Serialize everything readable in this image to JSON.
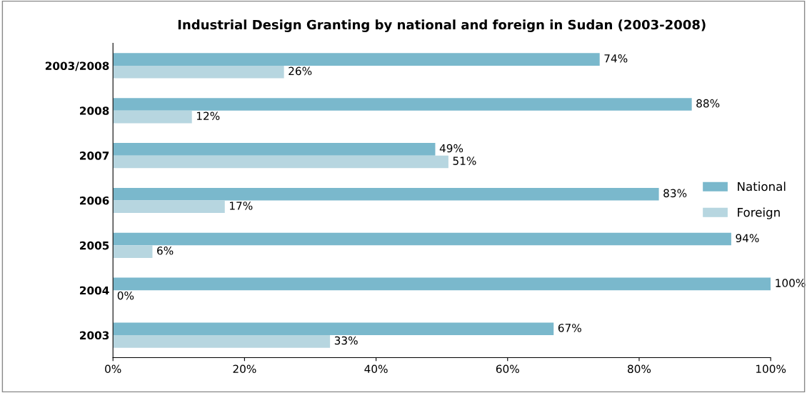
{
  "chart_data": {
    "type": "bar",
    "orientation": "horizontal",
    "title": "Industrial Design Granting by national and foreign in Sudan (2003-2008)",
    "categories": [
      "2003/2008",
      "2008",
      "2007",
      "2006",
      "2005",
      "2004",
      "2003"
    ],
    "series": [
      {
        "name": "National",
        "color": "#7ab8cc",
        "values": [
          74,
          88,
          49,
          83,
          94,
          100,
          67
        ],
        "value_labels": [
          "74%",
          "88%",
          "49%",
          "83%",
          "94%",
          "100%",
          "67%"
        ]
      },
      {
        "name": "Foreign",
        "color": "#b7d6e0",
        "values": [
          26,
          12,
          51,
          17,
          6,
          0,
          33
        ],
        "value_labels": [
          "26%",
          "12%",
          "51%",
          "17%",
          "6%",
          "0%",
          "33%"
        ]
      }
    ],
    "xlim": [
      0,
      100
    ],
    "xticks": [
      {
        "value": 0,
        "label": "0%"
      },
      {
        "value": 20,
        "label": "20%"
      },
      {
        "value": 40,
        "label": "40%"
      },
      {
        "value": 60,
        "label": "60%"
      },
      {
        "value": 80,
        "label": "80%"
      },
      {
        "value": 100,
        "label": "100%"
      }
    ],
    "grid": false,
    "legend": "right"
  }
}
